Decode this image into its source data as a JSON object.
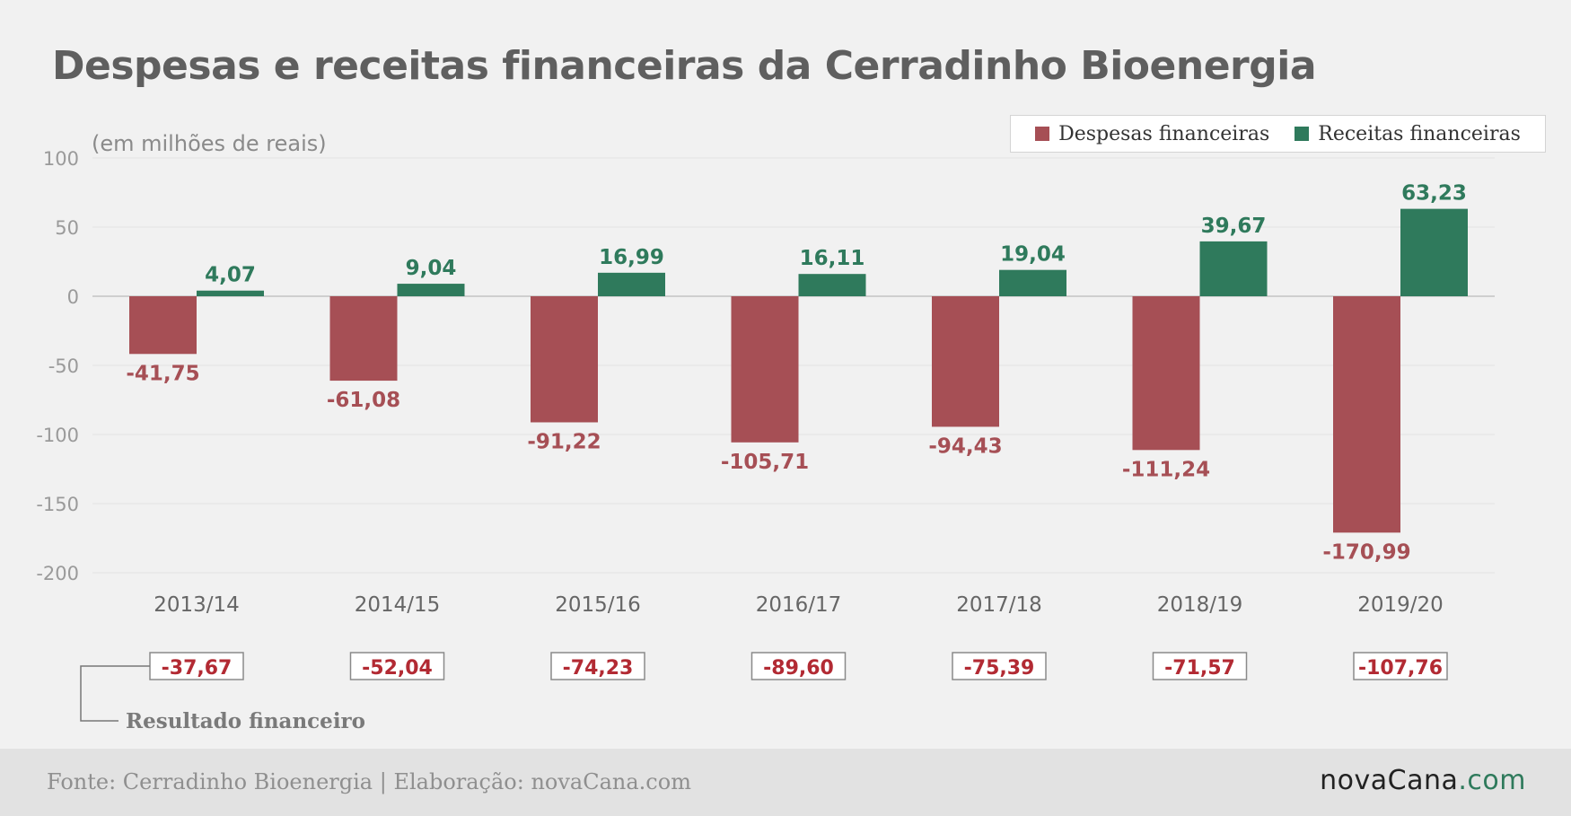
{
  "title": "Despesas e receitas financeiras da Cerradinho Bioenergia",
  "unit_note": "(em milhões de reais)",
  "legend": {
    "expenses_label": "Despesas financeiras",
    "revenue_label": "Receitas financeiras"
  },
  "result_label": "Resultado financeiro",
  "source": "Fonte: Cerradinho Bioenergia | Elaboração: novaCana.com",
  "brand": {
    "name": "novaCana",
    "dot": ".",
    "suffix": "com"
  },
  "colors": {
    "expenses": "#a64f55",
    "revenue": "#2f7a5c",
    "result_text": "#b22a33",
    "axis_text": "#8a8a8a"
  },
  "chart_data": {
    "type": "bar",
    "categories": [
      "2013/14",
      "2014/15",
      "2015/16",
      "2016/17",
      "2017/18",
      "2018/19",
      "2019/20"
    ],
    "series": [
      {
        "name": "Despesas financeiras",
        "values": [
          -41.75,
          -61.08,
          -91.22,
          -105.71,
          -94.43,
          -111.24,
          -170.99
        ],
        "labels": [
          "-41,75",
          "-61,08",
          "-91,22",
          "-105,71",
          "-94,43",
          "-111,24",
          "-170,99"
        ]
      },
      {
        "name": "Receitas financeiras",
        "values": [
          4.07,
          9.04,
          16.99,
          16.11,
          19.04,
          39.67,
          63.23
        ],
        "labels": [
          "4,07",
          "9,04",
          "16,99",
          "16,11",
          "19,04",
          "39,67",
          "63,23"
        ]
      }
    ],
    "result": {
      "name": "Resultado financeiro",
      "values": [
        -37.67,
        -52.04,
        -74.23,
        -89.6,
        -75.39,
        -71.57,
        -107.76
      ],
      "labels": [
        "-37,67",
        "-52,04",
        "-74,23",
        "-89,60",
        "-75,39",
        "-71,57",
        "-107,76"
      ]
    },
    "ylim": [
      -200,
      100
    ],
    "yticks": [
      100,
      50,
      0,
      -50,
      -100,
      -150,
      -200
    ],
    "legend_position": "top-right",
    "grid": true
  }
}
